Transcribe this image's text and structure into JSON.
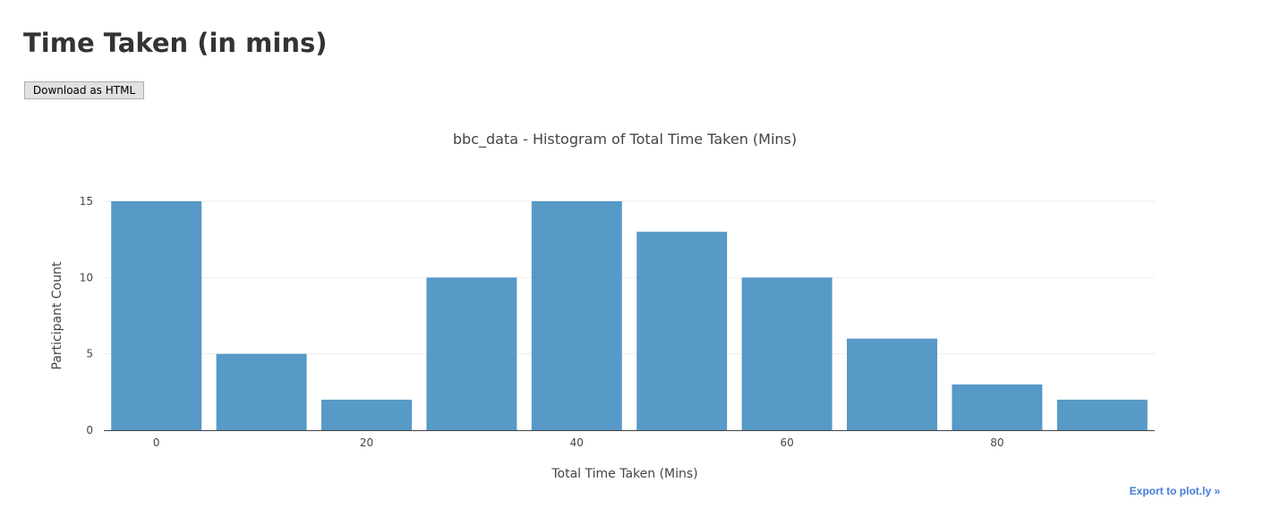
{
  "page": {
    "title": "Time Taken (in mins)",
    "download_label": "Download as HTML",
    "export_label": "Export to plot.ly »"
  },
  "colors": {
    "bar": "#5799c7",
    "grid": "#eeeeee",
    "axis_line": "#444444",
    "text": "#444444",
    "link": "#447adb"
  },
  "chart_data": {
    "type": "bar",
    "title": "bbc_data - Histogram of Total Time Taken (Mins)",
    "xlabel": "Total Time Taken (Mins)",
    "ylabel": "Participant Count",
    "bin_size": 10,
    "bin_starts": [
      -5,
      5,
      15,
      25,
      35,
      45,
      55,
      65,
      75,
      85
    ],
    "values": [
      15,
      5,
      2,
      10,
      15,
      13,
      10,
      6,
      3,
      2
    ],
    "xlim": [
      -5,
      95
    ],
    "ylim": [
      0,
      15
    ],
    "xticks": [
      0,
      20,
      40,
      60,
      80
    ],
    "yticks": [
      0,
      5,
      10,
      15
    ],
    "grid": true,
    "legend": "none"
  }
}
